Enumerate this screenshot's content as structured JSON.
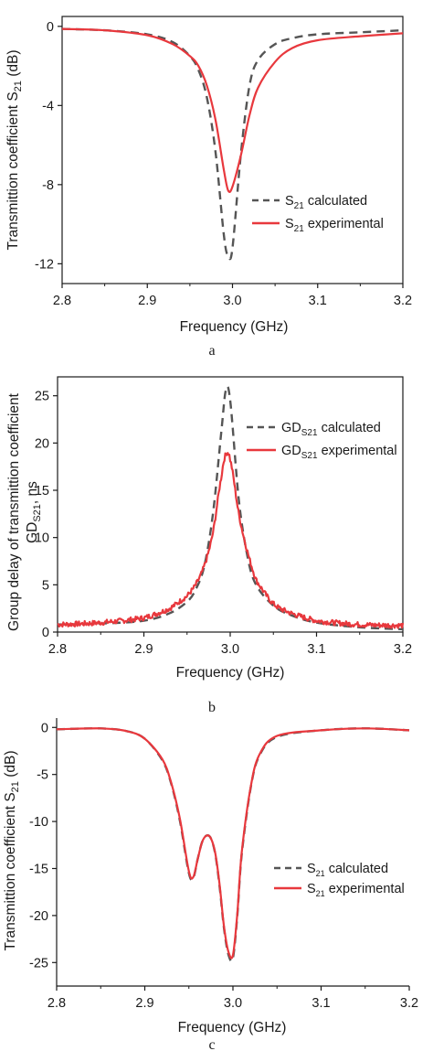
{
  "colors": {
    "calculated": "#555555",
    "experimental": "#e8383d",
    "axis": "#1a1a1a"
  },
  "chart_data": [
    {
      "type": "line",
      "panel_label": "a",
      "xlabel": "Frequency (GHz)",
      "ylabel": "Transmittion coefficient S21 (dB)",
      "xlim": [
        2.8,
        3.2
      ],
      "ylim": [
        -13,
        0.5
      ],
      "xticks": [
        "2.8",
        "2.9",
        "3.0",
        "3.1",
        "3.2"
      ],
      "yticks": [
        "0",
        "-4",
        "-8",
        "-12"
      ],
      "legend": "right",
      "x": [
        2.8,
        2.85,
        2.9,
        2.93,
        2.95,
        2.96,
        2.97,
        2.98,
        2.99,
        2.995,
        3.0,
        3.01,
        3.02,
        3.03,
        3.05,
        3.07,
        3.1,
        3.15,
        3.2
      ],
      "series": [
        {
          "name": "S21 calculated",
          "style": "dashed",
          "values": [
            -0.13,
            -0.2,
            -0.4,
            -0.8,
            -1.5,
            -2.2,
            -3.6,
            -6.3,
            -10.6,
            -11.6,
            -11.2,
            -6.4,
            -3.0,
            -1.7,
            -0.9,
            -0.6,
            -0.4,
            -0.3,
            -0.2
          ]
        },
        {
          "name": "S21 experimental",
          "style": "solid",
          "values": [
            -0.13,
            -0.2,
            -0.45,
            -0.9,
            -1.5,
            -2.0,
            -3.0,
            -4.7,
            -7.3,
            -8.3,
            -8.1,
            -6.5,
            -4.5,
            -3.1,
            -1.8,
            -1.1,
            -0.7,
            -0.5,
            -0.35
          ]
        }
      ]
    },
    {
      "type": "line",
      "panel_label": "b",
      "xlabel": "Frequency (GHz)",
      "ylabel": "Group delay of transmittion coefficient GDS21, ns",
      "xlim": [
        2.8,
        3.2
      ],
      "ylim": [
        0,
        27
      ],
      "xticks": [
        "2.8",
        "2.9",
        "3.0",
        "3.1",
        "3.2"
      ],
      "yticks": [
        "0",
        "5",
        "10",
        "15",
        "20",
        "25"
      ],
      "legend": "top-right",
      "x": [
        2.8,
        2.85,
        2.9,
        2.93,
        2.95,
        2.96,
        2.97,
        2.98,
        2.99,
        2.995,
        3.0,
        3.01,
        3.02,
        3.03,
        3.05,
        3.07,
        3.1,
        3.15,
        3.2
      ],
      "series": [
        {
          "name": "GDS21 calculated",
          "style": "dashed",
          "values": [
            0.8,
            0.9,
            1.2,
            2.0,
            3.2,
            4.5,
            7.0,
            12.5,
            21.5,
            25.6,
            24.5,
            14.0,
            8.0,
            5.0,
            2.8,
            1.8,
            1.0,
            0.5,
            0.3
          ]
        },
        {
          "name": "GDS21 experimental",
          "style": "solid",
          "values": [
            0.8,
            1.0,
            1.5,
            2.5,
            3.8,
            5.0,
            7.0,
            10.5,
            16.5,
            18.8,
            18.2,
            12.5,
            8.5,
            5.5,
            3.0,
            2.0,
            1.2,
            0.8,
            0.7
          ]
        }
      ]
    },
    {
      "type": "line",
      "panel_label": "c",
      "xlabel": "Frequency (GHz)",
      "ylabel": "Transmittion coefficient S21 (dB)",
      "xlim": [
        2.8,
        3.2
      ],
      "ylim": [
        -27.5,
        1
      ],
      "xticks": [
        "2.8",
        "2.9",
        "3.0",
        "3.1",
        "3.2"
      ],
      "yticks": [
        "0",
        "-5",
        "-10",
        "-15",
        "-20",
        "-25"
      ],
      "legend": "right",
      "x": [
        2.8,
        2.85,
        2.88,
        2.9,
        2.92,
        2.93,
        2.94,
        2.95,
        2.955,
        2.96,
        2.965,
        2.97,
        2.975,
        2.98,
        2.985,
        2.99,
        2.995,
        3.0,
        3.005,
        3.01,
        3.02,
        3.03,
        3.05,
        3.1,
        3.15,
        3.2
      ],
      "series": [
        {
          "name": "S21 calculated",
          "style": "dashed",
          "values": [
            -0.2,
            -0.1,
            -0.4,
            -1.2,
            -3.5,
            -6.0,
            -10.0,
            -15.5,
            -16.0,
            -14.0,
            -12.2,
            -11.5,
            -11.8,
            -13.5,
            -17.0,
            -21.5,
            -24.2,
            -24.5,
            -20.0,
            -13.5,
            -6.5,
            -3.0,
            -1.0,
            -0.3,
            -0.1,
            -0.3
          ]
        },
        {
          "name": "S21 experimental",
          "style": "solid",
          "values": [
            -0.2,
            -0.1,
            -0.4,
            -1.2,
            -3.4,
            -5.9,
            -9.8,
            -15.3,
            -15.9,
            -14.0,
            -12.2,
            -11.5,
            -11.8,
            -13.4,
            -16.8,
            -21.3,
            -23.9,
            -24.2,
            -19.8,
            -13.3,
            -6.4,
            -2.9,
            -0.9,
            -0.3,
            -0.1,
            -0.3
          ]
        }
      ]
    }
  ]
}
